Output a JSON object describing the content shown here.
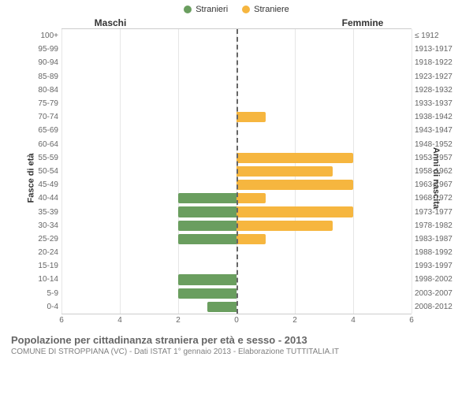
{
  "legend": {
    "male": {
      "label": "Stranieri",
      "color": "#6a9e5f"
    },
    "female": {
      "label": "Straniere",
      "color": "#f6b63f"
    }
  },
  "headers": {
    "male": "Maschi",
    "female": "Femmine"
  },
  "axis_labels": {
    "left": "Fasce di età",
    "right": "Anni di nascita"
  },
  "chart": {
    "type": "population-pyramid",
    "x_max": 6,
    "x_ticks": [
      6,
      4,
      2,
      0,
      2,
      4,
      6
    ],
    "grid_color": "#e6e6e6",
    "center_line_color": "#666666",
    "background_color": "#ffffff",
    "bar_color_male": "#6a9e5f",
    "bar_color_female": "#f6b63f",
    "label_fontsize": 10,
    "label_color": "#666666",
    "rows": [
      {
        "age": "100+",
        "birth": "≤ 1912",
        "m": 0,
        "f": 0
      },
      {
        "age": "95-99",
        "birth": "1913-1917",
        "m": 0,
        "f": 0
      },
      {
        "age": "90-94",
        "birth": "1918-1922",
        "m": 0,
        "f": 0
      },
      {
        "age": "85-89",
        "birth": "1923-1927",
        "m": 0,
        "f": 0
      },
      {
        "age": "80-84",
        "birth": "1928-1932",
        "m": 0,
        "f": 0
      },
      {
        "age": "75-79",
        "birth": "1933-1937",
        "m": 0,
        "f": 0
      },
      {
        "age": "70-74",
        "birth": "1938-1942",
        "m": 0,
        "f": 1
      },
      {
        "age": "65-69",
        "birth": "1943-1947",
        "m": 0,
        "f": 0
      },
      {
        "age": "60-64",
        "birth": "1948-1952",
        "m": 0,
        "f": 0
      },
      {
        "age": "55-59",
        "birth": "1953-1957",
        "m": 0,
        "f": 4
      },
      {
        "age": "50-54",
        "birth": "1958-1962",
        "m": 0,
        "f": 3.3
      },
      {
        "age": "45-49",
        "birth": "1963-1967",
        "m": 0,
        "f": 4
      },
      {
        "age": "40-44",
        "birth": "1968-1972",
        "m": 2,
        "f": 1
      },
      {
        "age": "35-39",
        "birth": "1973-1977",
        "m": 2,
        "f": 4
      },
      {
        "age": "30-34",
        "birth": "1978-1982",
        "m": 2,
        "f": 3.3
      },
      {
        "age": "25-29",
        "birth": "1983-1987",
        "m": 2,
        "f": 1
      },
      {
        "age": "20-24",
        "birth": "1988-1992",
        "m": 0,
        "f": 0
      },
      {
        "age": "15-19",
        "birth": "1993-1997",
        "m": 0,
        "f": 0
      },
      {
        "age": "10-14",
        "birth": "1998-2002",
        "m": 2,
        "f": 0
      },
      {
        "age": "5-9",
        "birth": "2003-2007",
        "m": 2,
        "f": 0
      },
      {
        "age": "0-4",
        "birth": "2008-2012",
        "m": 1,
        "f": 0
      }
    ]
  },
  "footer": {
    "title": "Popolazione per cittadinanza straniera per età e sesso - 2013",
    "subtitle": "COMUNE DI STROPPIANA (VC) - Dati ISTAT 1° gennaio 2013 - Elaborazione TUTTITALIA.IT"
  }
}
